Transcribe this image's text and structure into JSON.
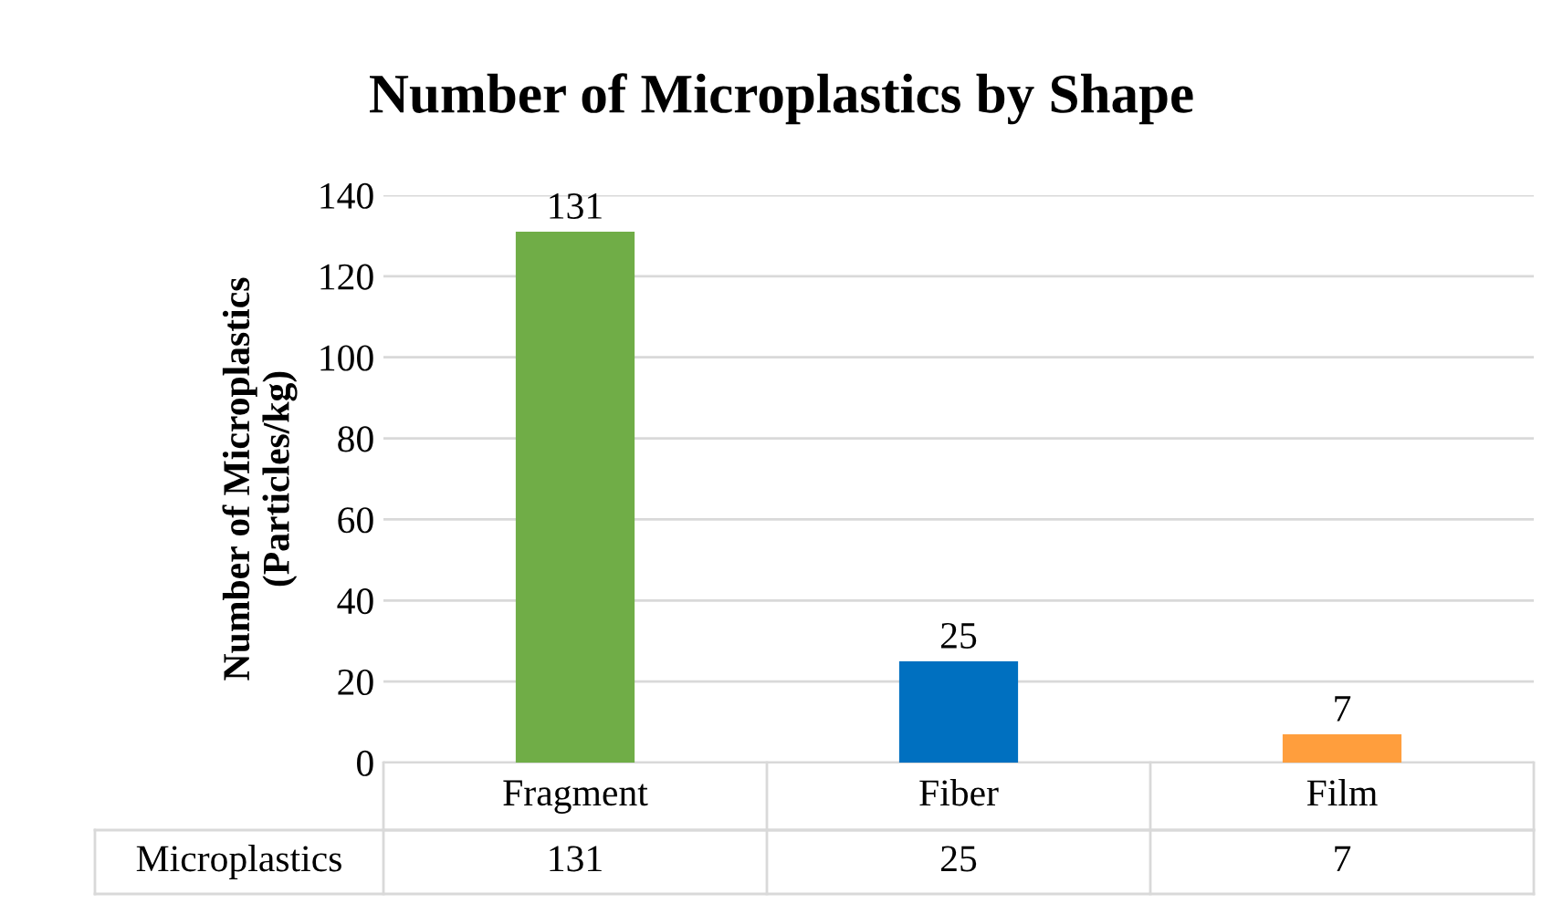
{
  "chart_data": {
    "type": "bar",
    "title": "Number of Microplastics by Shape",
    "ylabel": "Number of Microplastics\n(Particles/kg)",
    "categories": [
      "Fragment",
      "Fiber",
      "Film"
    ],
    "series": [
      {
        "name": "Microplastics",
        "colors": [
          "#70ad47",
          "#0070c0",
          "#ff9e3d"
        ],
        "values": [
          131,
          25,
          7
        ],
        "value_labels": [
          "131",
          "25",
          "7"
        ]
      }
    ],
    "ylim": [
      0,
      140
    ],
    "yticks": [
      0,
      20,
      40,
      60,
      80,
      100,
      120,
      140
    ],
    "grid": "y",
    "annotations": [
      "131",
      "25",
      "7"
    ],
    "legend": false
  }
}
